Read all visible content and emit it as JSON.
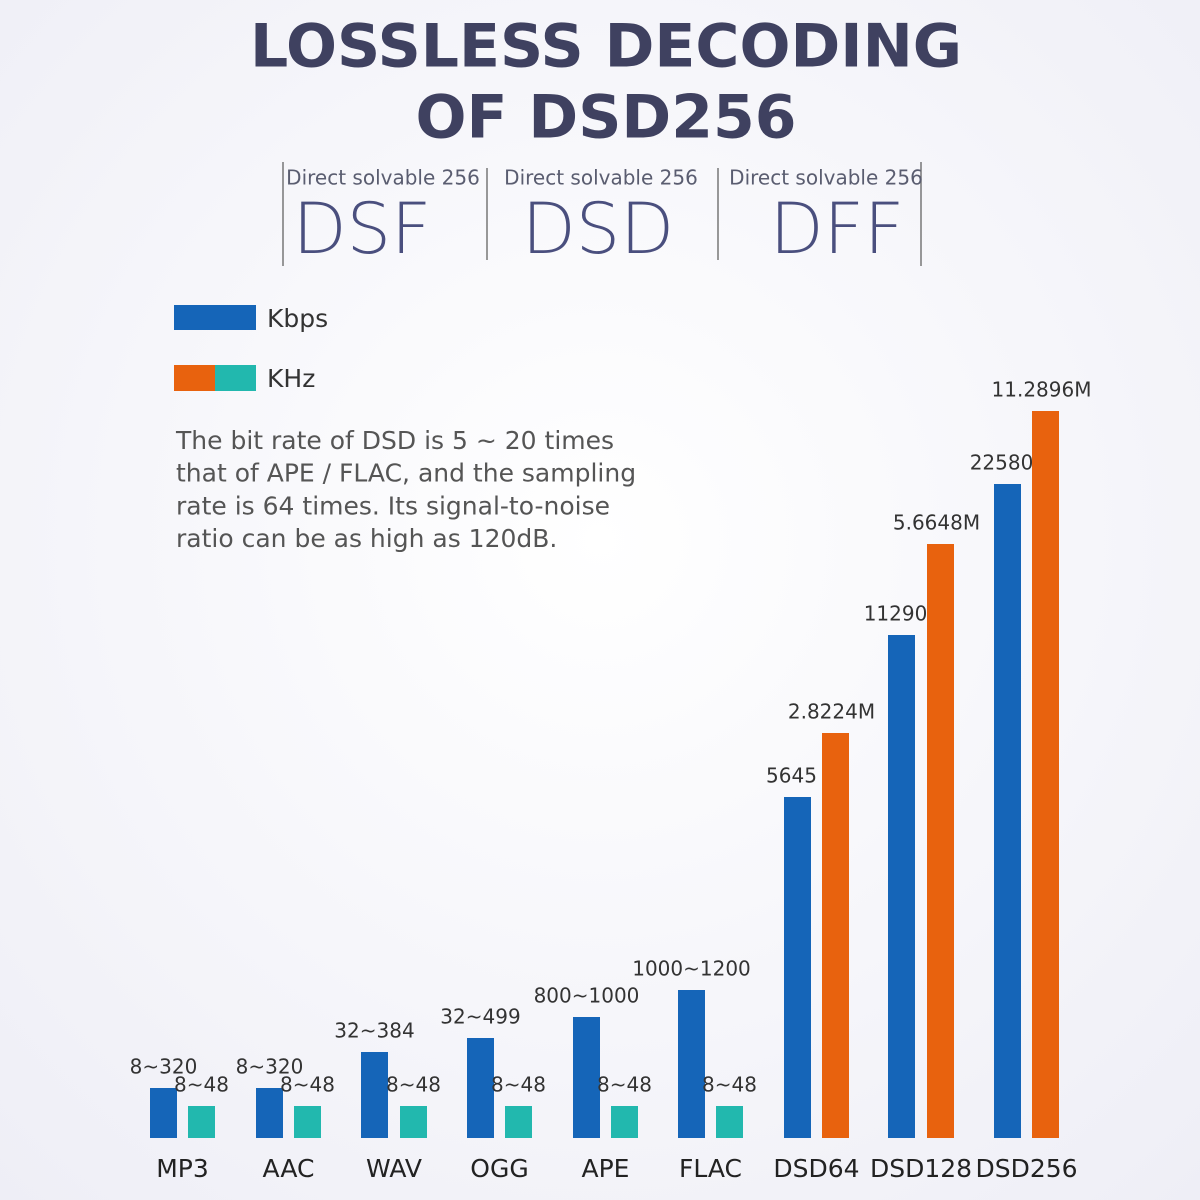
{
  "header": {
    "title_lines": [
      "LOSSLESS DECODING",
      "OF DSD256"
    ]
  },
  "formats": [
    {
      "caption": "Direct solvable 256",
      "name": "DSF"
    },
    {
      "caption": "Direct solvable 256",
      "name": "DSD"
    },
    {
      "caption": "Direct solvable 256",
      "name": "DFF"
    }
  ],
  "legend": [
    "Kbps",
    "KHz"
  ],
  "description": [
    "The bit rate of DSD is 5 ~ 20 times",
    "that of APE / FLAC, and the sampling",
    "rate is 64 times. Its signal-to-noise",
    "ratio can be as high as 120dB."
  ],
  "groups": [
    {
      "category": "MP3",
      "bitrate": "8~320",
      "sampling": "8~48"
    },
    {
      "category": "AAC",
      "bitrate": "8~320",
      "sampling": "8~48"
    },
    {
      "category": "WAV",
      "bitrate": "32~384",
      "sampling": "8~48"
    },
    {
      "category": "OGG",
      "bitrate": "32~499",
      "sampling": "8~48"
    },
    {
      "category": "APE",
      "bitrate": "800~1000",
      "sampling": "8~48"
    },
    {
      "category": "FLAC",
      "bitrate": "1000~1200",
      "sampling": "8~48"
    },
    {
      "category": "DSD64",
      "bitrate": "5645",
      "sampling": "2.8224M"
    },
    {
      "category": "DSD128",
      "bitrate": "11290",
      "sampling": "5.6648M"
    },
    {
      "category": "DSD256",
      "bitrate": "22580",
      "sampling": "11.2896M"
    }
  ]
}
